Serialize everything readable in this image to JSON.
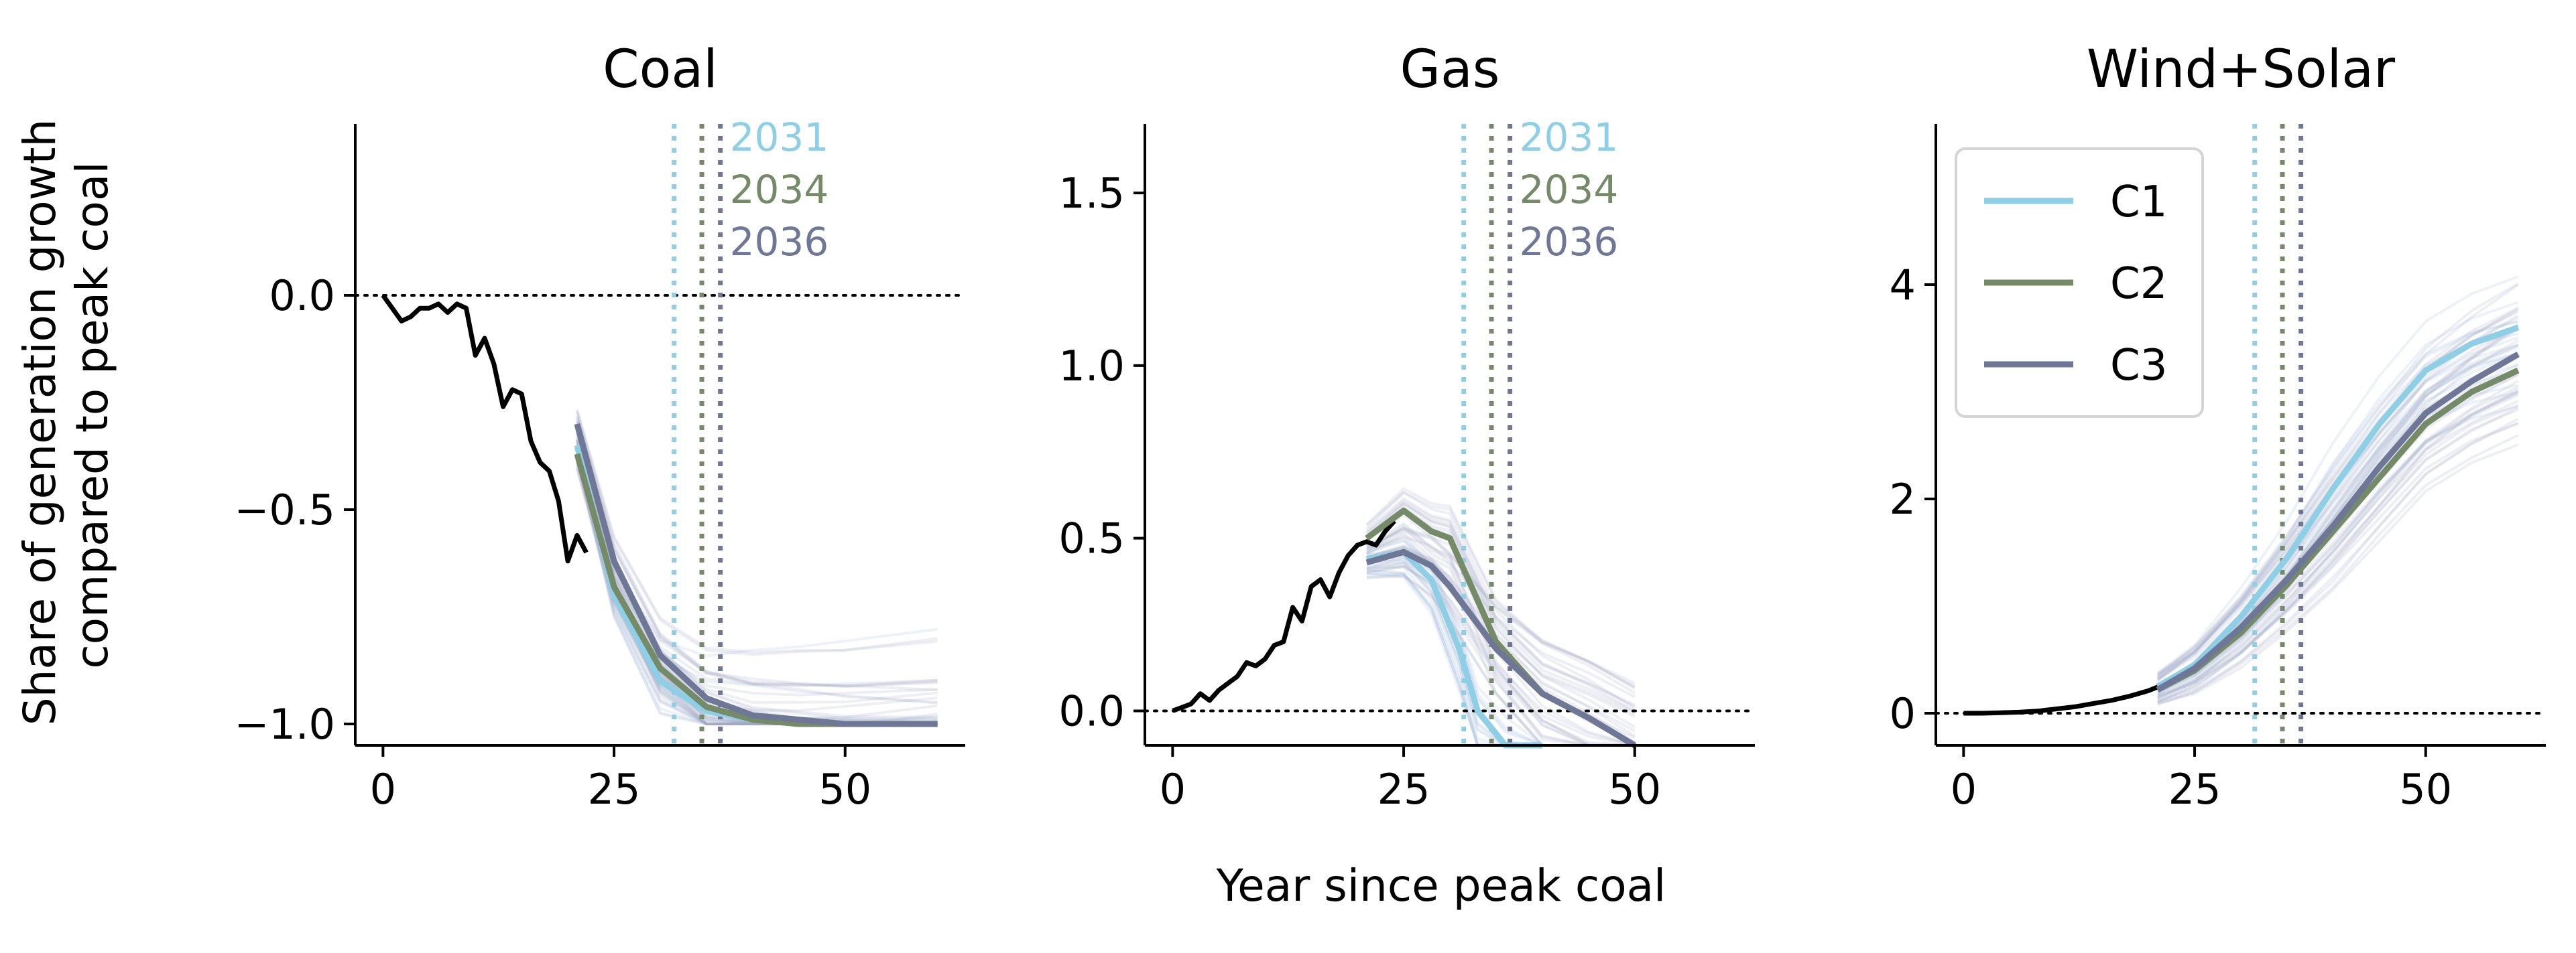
{
  "figure": {
    "ylabel_lines": [
      "Share of generation growth",
      "compared to peak coal"
    ],
    "xlabel": "Year since peak coal"
  },
  "colors": {
    "C1": "#8ecfe6",
    "C2": "#758b68",
    "C3": "#6f7797",
    "historical": "#000000",
    "zero_line": "#000000",
    "ensemble_blue": "#9bb8d6",
    "ensemble_purple": "#a3a6c4"
  },
  "legend": {
    "placement": "top-left of third panel",
    "entries": [
      {
        "label": "C1",
        "color": "#8ecfe6"
      },
      {
        "label": "C2",
        "color": "#758b68"
      },
      {
        "label": "C3",
        "color": "#6f7797"
      }
    ]
  },
  "chart_data": [
    {
      "type": "line",
      "title": "Coal",
      "xlim": [
        -3,
        63
      ],
      "ylim": [
        -1.05,
        0.4
      ],
      "xticks": [
        0,
        25,
        50
      ],
      "yticks": [
        0.0,
        -0.5,
        -1.0
      ],
      "ytick_labels": [
        "0.0",
        "−0.5",
        "−1.0"
      ],
      "zero_line": 0,
      "vlines": [
        {
          "x": 31.5,
          "label": "2031",
          "color": "#8ecfe6"
        },
        {
          "x": 34.5,
          "label": "2034",
          "color": "#758b68"
        },
        {
          "x": 36.5,
          "label": "2036",
          "color": "#6f7797"
        }
      ],
      "historical": {
        "x": [
          0,
          1,
          2,
          3,
          4,
          5,
          6,
          7,
          8,
          9,
          10,
          11,
          12,
          13,
          14,
          15,
          16,
          17,
          18,
          19,
          20,
          21,
          22
        ],
        "y": [
          0.0,
          -0.03,
          -0.06,
          -0.05,
          -0.03,
          -0.03,
          -0.02,
          -0.04,
          -0.02,
          -0.03,
          -0.14,
          -0.1,
          -0.16,
          -0.26,
          -0.22,
          -0.23,
          -0.34,
          -0.39,
          -0.41,
          -0.48,
          -0.62,
          -0.56,
          -0.6
        ]
      },
      "series": [
        {
          "name": "C1",
          "x": [
            21,
            25,
            30,
            35,
            40,
            45,
            50,
            55,
            60
          ],
          "y": [
            -0.35,
            -0.7,
            -0.9,
            -0.97,
            -0.99,
            -1.0,
            -1.0,
            -1.0,
            -1.0
          ]
        },
        {
          "name": "C2",
          "x": [
            21,
            25,
            30,
            35,
            40,
            45,
            50,
            55,
            60
          ],
          "y": [
            -0.37,
            -0.68,
            -0.87,
            -0.96,
            -0.99,
            -1.0,
            -1.0,
            -1.0,
            -1.0
          ]
        },
        {
          "name": "C3",
          "x": [
            21,
            25,
            30,
            35,
            40,
            45,
            50,
            55,
            60
          ],
          "y": [
            -0.3,
            -0.62,
            -0.84,
            -0.94,
            -0.98,
            -0.99,
            -1.0,
            -1.0,
            -1.0
          ]
        }
      ]
    },
    {
      "type": "line",
      "title": "Gas",
      "xlim": [
        -3,
        63
      ],
      "ylim": [
        -0.1,
        1.7
      ],
      "xticks": [
        0,
        25,
        50
      ],
      "yticks": [
        0.0,
        0.5,
        1.0,
        1.5
      ],
      "ytick_labels": [
        "0.0",
        "0.5",
        "1.0",
        "1.5"
      ],
      "zero_line": 0,
      "vlines": [
        {
          "x": 31.5,
          "label": "2031",
          "color": "#8ecfe6"
        },
        {
          "x": 34.5,
          "label": "2034",
          "color": "#758b68"
        },
        {
          "x": 36.5,
          "label": "2036",
          "color": "#6f7797"
        }
      ],
      "historical": {
        "x": [
          0,
          1,
          2,
          3,
          4,
          5,
          6,
          7,
          8,
          9,
          10,
          11,
          12,
          13,
          14,
          15,
          16,
          17,
          18,
          19,
          20,
          21,
          22,
          23,
          24
        ],
        "y": [
          0.0,
          0.01,
          0.02,
          0.05,
          0.03,
          0.06,
          0.08,
          0.1,
          0.14,
          0.13,
          0.15,
          0.19,
          0.2,
          0.3,
          0.26,
          0.36,
          0.38,
          0.33,
          0.4,
          0.45,
          0.48,
          0.49,
          0.48,
          0.52,
          0.55
        ]
      },
      "series": [
        {
          "name": "C1",
          "x": [
            21,
            25,
            28,
            31,
            33,
            36,
            40
          ],
          "y": [
            0.44,
            0.46,
            0.38,
            0.18,
            0.0,
            -0.1,
            -0.2
          ]
        },
        {
          "name": "C2",
          "x": [
            21,
            23,
            25,
            28,
            30,
            35,
            40,
            45,
            50
          ],
          "y": [
            0.5,
            0.54,
            0.58,
            0.52,
            0.5,
            0.2,
            0.05,
            -0.02,
            -0.1
          ]
        },
        {
          "name": "C3",
          "x": [
            21,
            25,
            28,
            30,
            35,
            40,
            45,
            50
          ],
          "y": [
            0.43,
            0.46,
            0.42,
            0.36,
            0.18,
            0.05,
            -0.02,
            -0.1
          ]
        }
      ]
    },
    {
      "type": "line",
      "title": "Wind+Solar",
      "xlim": [
        -3,
        63
      ],
      "ylim": [
        -0.3,
        5.5
      ],
      "xticks": [
        0,
        25,
        50
      ],
      "yticks": [
        0,
        2,
        4
      ],
      "ytick_labels": [
        "0",
        "2",
        "4"
      ],
      "zero_line": 0,
      "vlines": [
        {
          "x": 31.5,
          "label": "",
          "color": "#8ecfe6"
        },
        {
          "x": 34.5,
          "label": "",
          "color": "#758b68"
        },
        {
          "x": 36.5,
          "label": "",
          "color": "#6f7797"
        }
      ],
      "historical": {
        "x": [
          0,
          2,
          4,
          6,
          8,
          10,
          12,
          14,
          16,
          18,
          20,
          22,
          23
        ],
        "y": [
          0.0,
          0.0,
          0.005,
          0.01,
          0.02,
          0.04,
          0.06,
          0.09,
          0.12,
          0.16,
          0.21,
          0.28,
          0.32
        ]
      },
      "series": [
        {
          "name": "C1",
          "x": [
            21,
            25,
            30,
            35,
            40,
            45,
            50,
            55,
            60
          ],
          "y": [
            0.25,
            0.45,
            0.9,
            1.45,
            2.1,
            2.7,
            3.2,
            3.45,
            3.6
          ]
        },
        {
          "name": "C2",
          "x": [
            21,
            25,
            30,
            35,
            40,
            45,
            50,
            55,
            60
          ],
          "y": [
            0.22,
            0.4,
            0.75,
            1.2,
            1.7,
            2.2,
            2.7,
            3.0,
            3.2
          ]
        },
        {
          "name": "C3",
          "x": [
            21,
            25,
            30,
            35,
            40,
            45,
            50,
            55,
            60
          ],
          "y": [
            0.22,
            0.42,
            0.8,
            1.25,
            1.75,
            2.3,
            2.8,
            3.1,
            3.35
          ]
        }
      ]
    }
  ]
}
